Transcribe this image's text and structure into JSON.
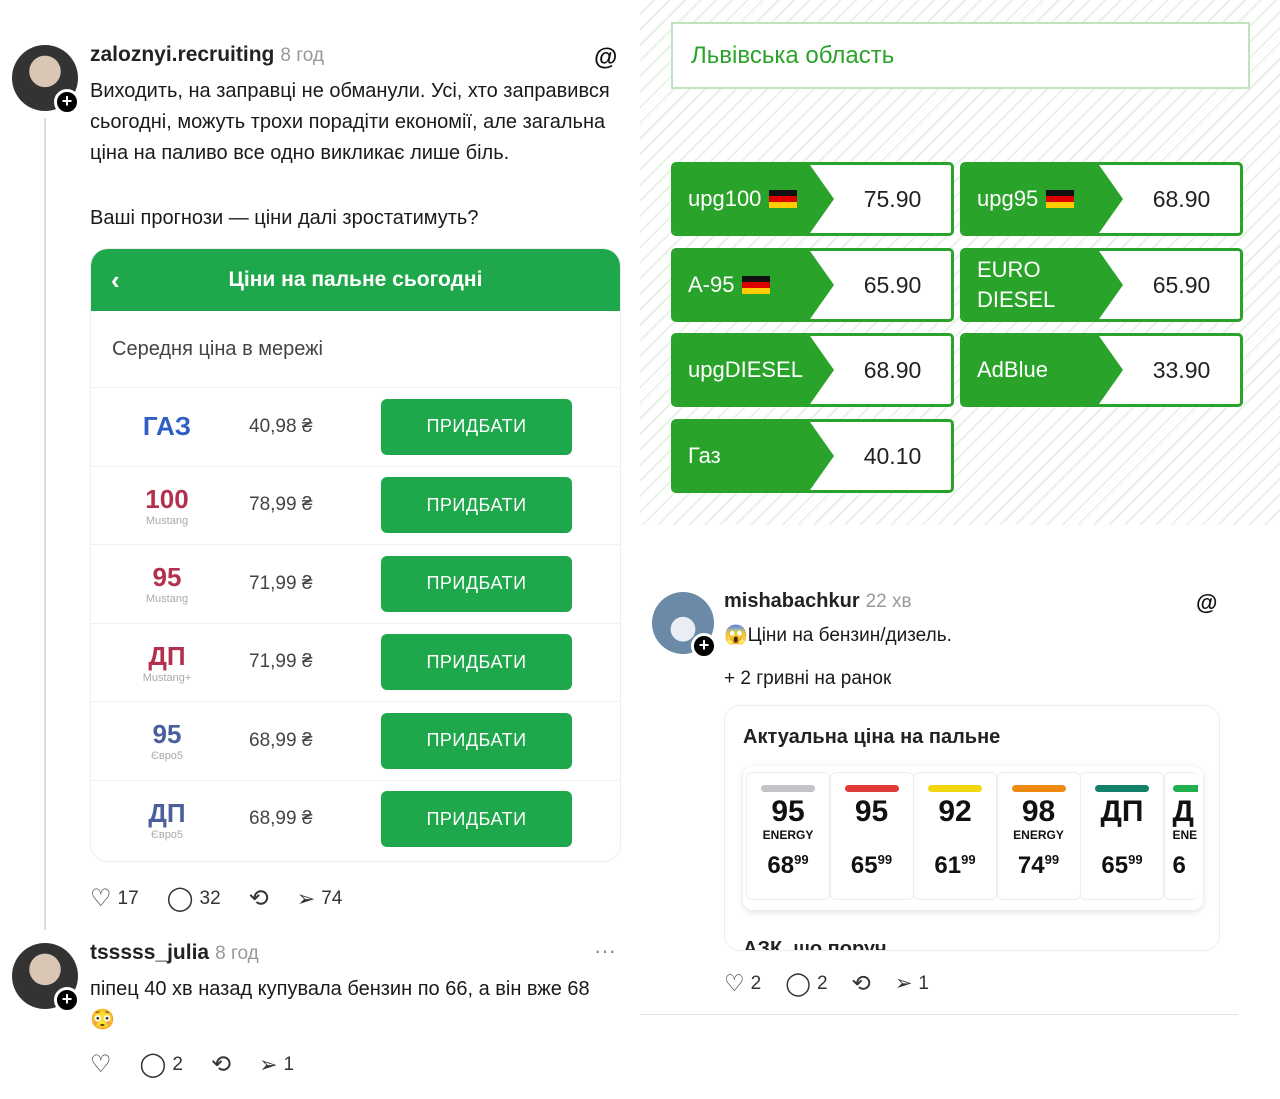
{
  "post1": {
    "username": "zaloznyi.recruiting",
    "time": "8 год",
    "text1": "Виходить, на заправці не обманули. Усі, хто заправився сьогодні, можуть трохи порадіти економії, але загальна ціна на паливо все одно викликає лише біль.",
    "text2": "Ваші прогнози — ціни далі зростатимуть?",
    "card": {
      "title": "Ціни на пальне сьогодні",
      "subtitle": "Середня ціна в мережі",
      "buy_label": "ПРИДБАТИ",
      "rows": [
        {
          "fuel": "ГАЗ",
          "sub": "",
          "price": "40,98 ₴",
          "color": "#2f5fc4"
        },
        {
          "fuel": "100",
          "sub": "Mustang",
          "price": "78,99 ₴",
          "color": "#b3304f"
        },
        {
          "fuel": "95",
          "sub": "Mustang",
          "price": "71,99 ₴",
          "color": "#b3304f"
        },
        {
          "fuel": "ДП",
          "sub": "Mustang+",
          "price": "71,99 ₴",
          "color": "#b3304f"
        },
        {
          "fuel": "95",
          "sub": "Євро5",
          "price": "68,99 ₴",
          "color": "#4a5f9c"
        },
        {
          "fuel": "ДП",
          "sub": "Євро5",
          "price": "68,99 ₴",
          "color": "#4a5f9c"
        }
      ]
    },
    "likes": "17",
    "comments": "32",
    "shares": "74"
  },
  "comment": {
    "username": "tsssss_julia",
    "time": "8 год",
    "text": "піпец 40 хв назад купувала бензин по 66, а він вже 68😳",
    "likes": "",
    "comments": "2",
    "shares": "1"
  },
  "board": {
    "region": "Львівська область",
    "tiles": [
      {
        "label": "upg100",
        "flag": true,
        "price": "75.90"
      },
      {
        "label": "upg95",
        "flag": true,
        "price": "68.90"
      },
      {
        "label": "A-95",
        "flag": true,
        "price": "65.90"
      },
      {
        "label": "EURO DIESEL",
        "flag": false,
        "price": "65.90"
      },
      {
        "label": "upgDIESEL",
        "flag": false,
        "price": "68.90"
      },
      {
        "label": "AdBlue",
        "flag": false,
        "price": "33.90"
      },
      {
        "label": "Газ",
        "flag": false,
        "price": "40.10"
      }
    ]
  },
  "post2": {
    "username": "mishabachkur",
    "time": "22 хв",
    "text1": "😱Ціни на бензин/дизель.",
    "text2": "+ 2 гривні на ранок",
    "card_title": "Актуальна ціна на пальне",
    "card_footer": "АЗК, що поруч",
    "fuels": [
      {
        "n": "95",
        "e": "ENERGY",
        "p": "68",
        "c": "99",
        "color": "#c4c4c8"
      },
      {
        "n": "95",
        "e": "",
        "p": "65",
        "c": "99",
        "color": "#e03a3a"
      },
      {
        "n": "92",
        "e": "",
        "p": "61",
        "c": "99",
        "color": "#f2d70f"
      },
      {
        "n": "98",
        "e": "ENERGY",
        "p": "74",
        "c": "99",
        "color": "#ee8a12"
      },
      {
        "n": "ДП",
        "e": "",
        "p": "65",
        "c": "99",
        "color": "#12806a"
      },
      {
        "n": "Д",
        "e": "ENE",
        "p": "6",
        "c": "",
        "color": "#20b050"
      }
    ],
    "likes": "2",
    "comments": "2",
    "shares": "1"
  }
}
